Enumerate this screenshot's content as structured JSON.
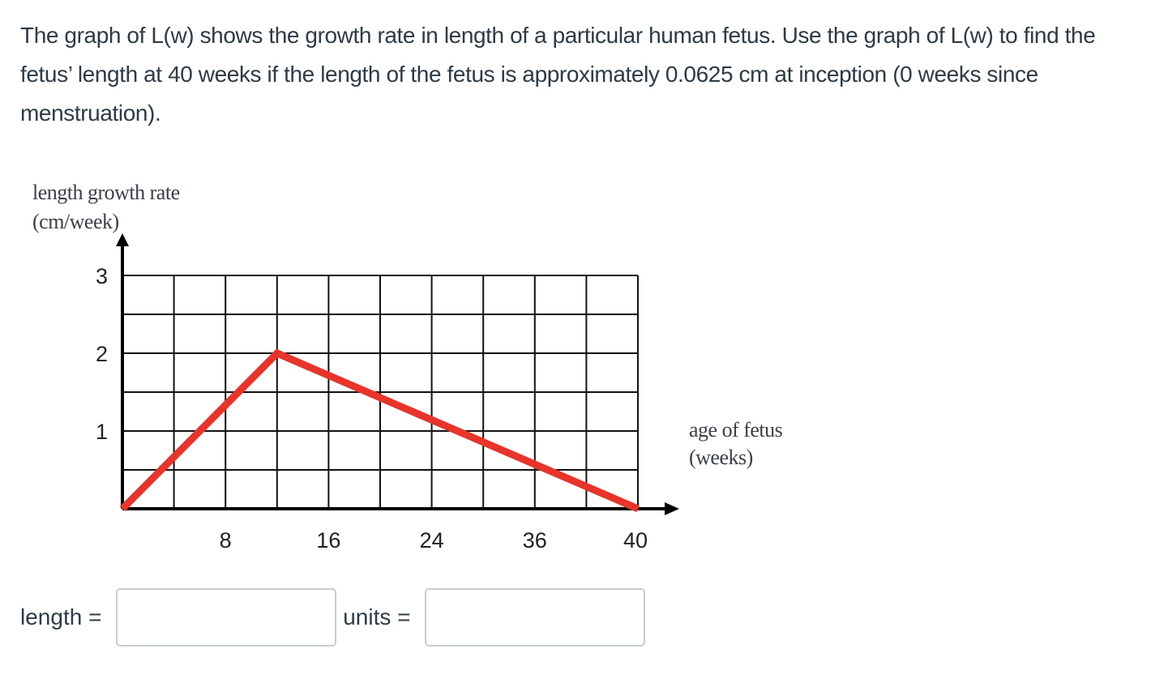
{
  "question": {
    "text": "The graph of L(w) shows the growth rate in length of a particular human fetus. Use the graph of L(w) to find the fetus’ length at 40 weeks if the length of the fetus is approximately 0.0625 cm at inception (0 weeks since menstruation)."
  },
  "chart": {
    "ylabel_line1": "length growth rate",
    "ylabel_line2": "(cm/week)",
    "xlabel_line1": "age of fetus",
    "xlabel_line2": "(weeks)",
    "y_ticks": [
      "3",
      "2",
      "1"
    ],
    "x_ticks": [
      "8",
      "16",
      "24",
      "36",
      "40"
    ],
    "line_color": "#e8342a"
  },
  "chart_data": {
    "type": "line",
    "title": "",
    "xlabel": "age of fetus (weeks)",
    "ylabel": "length growth rate (cm/week)",
    "x_tick_labels": [
      "8",
      "16",
      "24",
      "36",
      "40"
    ],
    "y_tick_labels": [
      "1",
      "2",
      "3"
    ],
    "xlim": [
      0,
      40
    ],
    "ylim": [
      0,
      3
    ],
    "grid": true,
    "grid_columns": 10,
    "grid_rows": 6,
    "series": [
      {
        "name": "L(w)",
        "color": "#e8342a",
        "x": [
          0,
          12,
          40
        ],
        "y": [
          0,
          2,
          0
        ]
      }
    ]
  },
  "answer": {
    "length_label": "length = ",
    "length_value": "",
    "units_label": "units = ",
    "units_value": ""
  }
}
